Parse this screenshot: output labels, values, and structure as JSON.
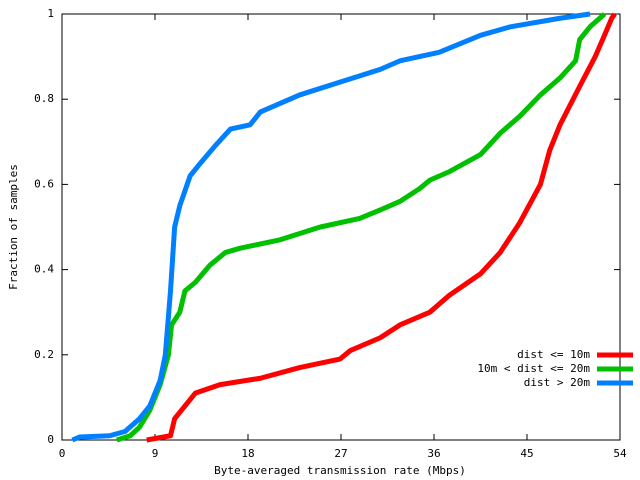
{
  "chart_data": {
    "type": "line",
    "x_label": "Byte-averaged transmission rate (Mbps)",
    "y_label": "Fraction of samples",
    "xlim": [
      0,
      54
    ],
    "xticks": [
      0,
      9,
      18,
      27,
      36,
      45,
      54
    ],
    "ylim": [
      0,
      1
    ],
    "yticks": [
      0,
      0.2,
      0.4,
      0.6,
      0.8,
      1
    ],
    "grid": false,
    "legend_position": "lower-right",
    "series": [
      {
        "name": "dist <= 10m",
        "color": "#ff0000",
        "x": [
          8.2,
          10.5,
          10.9,
          11.9,
          12.9,
          15.3,
          19.2,
          23,
          26.9,
          27.9,
          30.8,
          32.7,
          35.6,
          37.5,
          40.5,
          42.4,
          44.3,
          46.3,
          47.2,
          48.2,
          50.1,
          51.6,
          52.5,
          53.2,
          53.5
        ],
        "values": [
          0,
          0.01,
          0.05,
          0.08,
          0.11,
          0.13,
          0.145,
          0.17,
          0.19,
          0.21,
          0.24,
          0.27,
          0.3,
          0.34,
          0.39,
          0.44,
          0.51,
          0.6,
          0.68,
          0.74,
          0.83,
          0.9,
          0.95,
          0.99,
          1
        ]
      },
      {
        "name": "10m < dist <= 20m",
        "color": "#00c000",
        "x": [
          5.3,
          6.6,
          7.5,
          8.5,
          9.5,
          10.3,
          10.6,
          11.4,
          11.9,
          12.9,
          14.3,
          15.8,
          17.2,
          21.1,
          25,
          28.8,
          30.8,
          32.7,
          34.6,
          35.6,
          37.5,
          40.5,
          42.4,
          44.3,
          46.3,
          48.2,
          49.7,
          50.1,
          51.1,
          52.5
        ],
        "values": [
          0,
          0.01,
          0.03,
          0.07,
          0.13,
          0.2,
          0.27,
          0.3,
          0.35,
          0.37,
          0.41,
          0.44,
          0.45,
          0.47,
          0.5,
          0.52,
          0.54,
          0.56,
          0.59,
          0.61,
          0.63,
          0.67,
          0.72,
          0.76,
          0.81,
          0.85,
          0.89,
          0.94,
          0.97,
          1
        ]
      },
      {
        "name": "dist > 20m",
        "color": "#0080ff",
        "x": [
          1,
          1.7,
          4.6,
          6.1,
          7.5,
          8.5,
          9.5,
          10,
          10.5,
          10.9,
          11.4,
          12.4,
          13.4,
          14.8,
          16.3,
          18.2,
          19.2,
          21.1,
          23,
          26.9,
          30.8,
          32.7,
          36.5,
          40.5,
          43.4,
          48.2,
          51.1
        ],
        "values": [
          0,
          0.007,
          0.01,
          0.02,
          0.05,
          0.08,
          0.14,
          0.2,
          0.35,
          0.5,
          0.55,
          0.62,
          0.65,
          0.69,
          0.73,
          0.74,
          0.77,
          0.79,
          0.81,
          0.84,
          0.87,
          0.89,
          0.91,
          0.95,
          0.97,
          0.99,
          1
        ]
      }
    ]
  }
}
